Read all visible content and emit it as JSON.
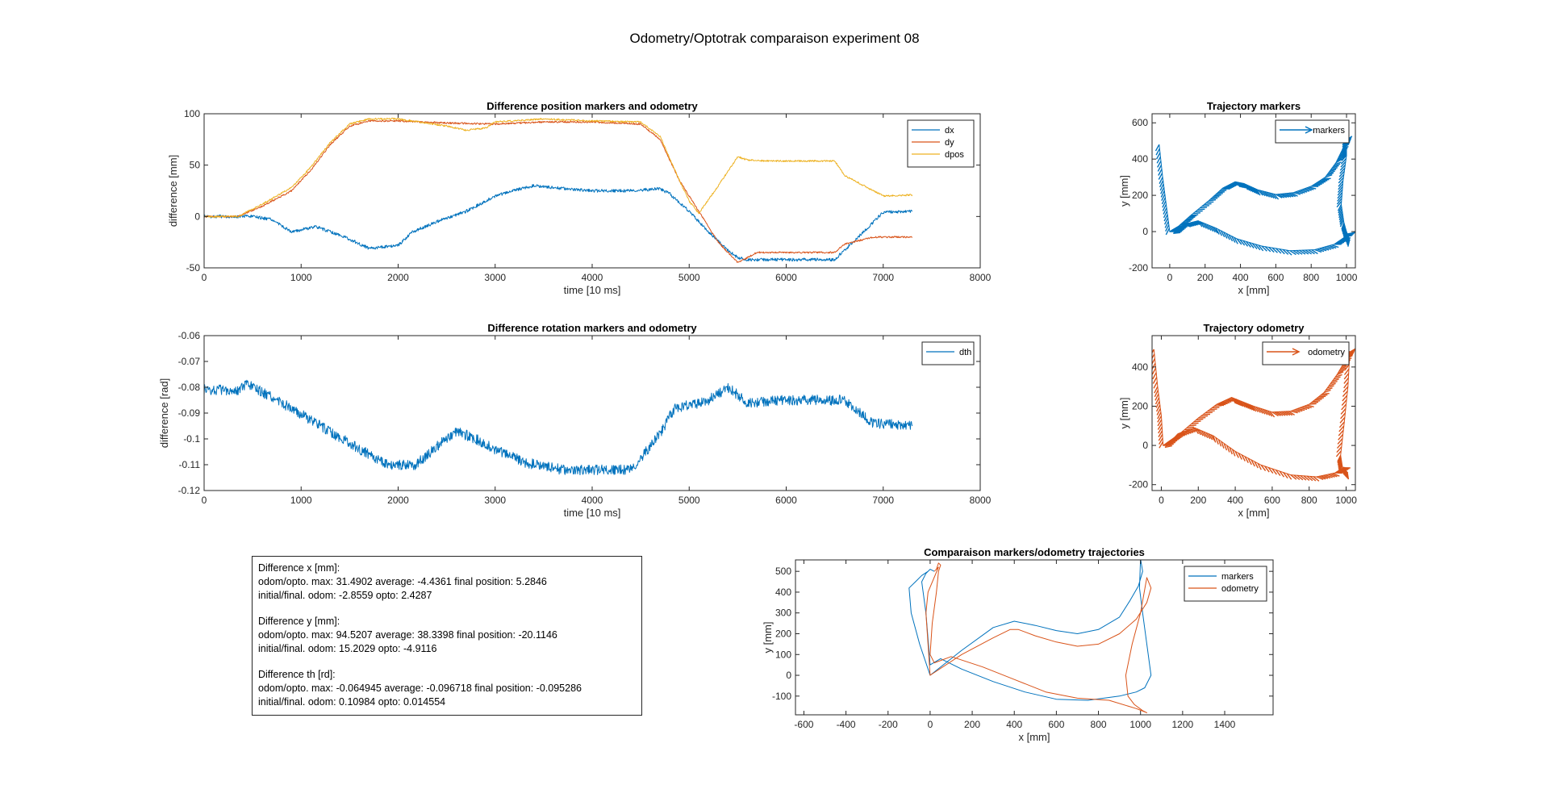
{
  "figure": {
    "title": "Odometry/Optotrak comparaison experiment 08"
  },
  "colors": {
    "blue": "#0072BD",
    "orange": "#D95319",
    "yellow": "#EDB120",
    "axis": "#262626"
  },
  "chart_data": [
    {
      "id": "pos",
      "type": "line",
      "title": "Difference position markers and odometry",
      "xlabel": "time [10 ms]",
      "ylabel": "difference [mm]",
      "xlim": [
        0,
        8000
      ],
      "ylim": [
        -50,
        100
      ],
      "xticks": [
        0,
        1000,
        2000,
        3000,
        4000,
        5000,
        6000,
        7000,
        8000
      ],
      "yticks": [
        -50,
        0,
        50,
        100
      ],
      "legend_position": "top-right",
      "series": [
        {
          "name": "dx",
          "color": "#0072BD",
          "noise": 1.5,
          "x": [
            0,
            350,
            500,
            700,
            900,
            1150,
            1400,
            1700,
            1800,
            2000,
            2150,
            2400,
            2700,
            3000,
            3300,
            3400,
            3600,
            4000,
            4400,
            4700,
            4800,
            5000,
            5200,
            5400,
            5500,
            5600,
            6000,
            6500,
            6600,
            6850,
            7000,
            7300
          ],
          "y": [
            0,
            0,
            0,
            -3,
            -15,
            -10,
            -18,
            -31,
            -30,
            -28,
            -15,
            -5,
            5,
            20,
            28,
            30,
            28,
            25,
            25,
            27,
            22,
            5,
            -15,
            -33,
            -40,
            -42,
            -42,
            -42,
            -33,
            -10,
            4,
            5
          ]
        },
        {
          "name": "dy",
          "color": "#D95319",
          "noise": 0.8,
          "x": [
            0,
            350,
            600,
            900,
            1100,
            1300,
            1500,
            1700,
            2000,
            2500,
            3000,
            3500,
            4000,
            4500,
            4700,
            4900,
            5100,
            5300,
            5500,
            5700,
            6000,
            6500,
            6600,
            6900,
            7000,
            7300
          ],
          "y": [
            0,
            0,
            10,
            25,
            45,
            70,
            88,
            93,
            93,
            91,
            90,
            92,
            92,
            90,
            75,
            35,
            5,
            -25,
            -45,
            -35,
            -35,
            -35,
            -27,
            -20,
            -20,
            -20
          ]
        },
        {
          "name": "dpos",
          "color": "#EDB120",
          "noise": 0.8,
          "x": [
            0,
            350,
            600,
            900,
            1100,
            1300,
            1500,
            1700,
            2000,
            2500,
            2700,
            2900,
            3000,
            3500,
            4000,
            4500,
            4700,
            4900,
            5000,
            5100,
            5300,
            5500,
            5600,
            5800,
            6500,
            6600,
            6900,
            7000,
            7300
          ],
          "y": [
            0,
            0,
            12,
            28,
            48,
            72,
            90,
            95,
            95,
            88,
            84,
            86,
            92,
            95,
            93,
            92,
            78,
            35,
            15,
            3,
            30,
            58,
            55,
            54,
            54,
            40,
            25,
            20,
            21
          ]
        }
      ]
    },
    {
      "id": "rot",
      "type": "line",
      "title": "Difference rotation markers and odometry",
      "xlabel": "time [10 ms]",
      "ylabel": "difference [rad]",
      "xlim": [
        0,
        8000
      ],
      "ylim": [
        -0.12,
        -0.06
      ],
      "xticks": [
        0,
        1000,
        2000,
        3000,
        4000,
        5000,
        6000,
        7000,
        8000
      ],
      "yticks": [
        -0.12,
        -0.11,
        -0.1,
        -0.09,
        -0.08,
        -0.07,
        -0.06
      ],
      "legend_position": "top-right",
      "series": [
        {
          "name": "dth",
          "color": "#0072BD",
          "noise": 0.002,
          "x": [
            0,
            350,
            450,
            800,
            1200,
            1600,
            1900,
            2100,
            2150,
            2400,
            2600,
            2800,
            3000,
            3300,
            3700,
            3800,
            4400,
            4450,
            4700,
            4850,
            5000,
            5200,
            5400,
            5600,
            6000,
            6500,
            6600,
            6700,
            6900,
            7300
          ],
          "y": [
            -0.081,
            -0.081,
            -0.079,
            -0.086,
            -0.095,
            -0.104,
            -0.11,
            -0.11,
            -0.111,
            -0.103,
            -0.097,
            -0.1,
            -0.104,
            -0.109,
            -0.112,
            -0.112,
            -0.112,
            -0.11,
            -0.098,
            -0.088,
            -0.087,
            -0.085,
            -0.08,
            -0.086,
            -0.085,
            -0.085,
            -0.085,
            -0.088,
            -0.094,
            -0.095
          ]
        }
      ]
    },
    {
      "id": "trajm",
      "type": "line",
      "title": "Trajectory markers",
      "xlabel": "x [mm]",
      "ylabel": "y [mm]",
      "xlim": [
        -100,
        1050
      ],
      "ylim": [
        -200,
        650
      ],
      "xticks": [
        0,
        200,
        400,
        600,
        800,
        1000
      ],
      "yticks": [
        -200,
        0,
        200,
        400,
        600
      ],
      "legend_position": "top-right",
      "series": [
        {
          "name": "markers",
          "color": "#0072BD",
          "style": "quiver",
          "x": [
            -60,
            -40,
            -20,
            0,
            15,
            50,
            120,
            220,
            300,
            370,
            420,
            500,
            600,
            700,
            800,
            880,
            940,
            980,
            1000,
            1000,
            980,
            970,
            985,
            1000,
            1020
          ],
          "y": [
            480,
            300,
            150,
            0,
            10,
            30,
            90,
            170,
            240,
            275,
            265,
            230,
            205,
            215,
            250,
            300,
            380,
            460,
            510,
            420,
            280,
            150,
            50,
            0,
            -50
          ]
        },
        {
          "name": "",
          "color": "#0072BD",
          "style": "quiver",
          "x": [
            20,
            80,
            160,
            260,
            380,
            520,
            680,
            820,
            930,
            990,
            1010
          ],
          "y": [
            -10,
            40,
            60,
            20,
            -40,
            -80,
            -105,
            -100,
            -70,
            -30,
            -10
          ]
        }
      ]
    },
    {
      "id": "trajo",
      "type": "line",
      "title": "Trajectory odometry",
      "xlabel": "x [mm]",
      "ylabel": "y [mm]",
      "xlim": [
        -50,
        1050
      ],
      "ylim": [
        -230,
        560
      ],
      "xticks": [
        0,
        200,
        400,
        600,
        800,
        1000
      ],
      "yticks": [
        -200,
        0,
        200,
        400
      ],
      "legend_position": "top-right",
      "series": [
        {
          "name": "odometry",
          "color": "#D95319",
          "style": "quiver",
          "x": [
            -40,
            -20,
            0,
            10,
            40,
            100,
            200,
            300,
            380,
            420,
            500,
            600,
            700,
            800,
            880,
            950,
            1000,
            1020,
            1010,
            990,
            970,
            980,
            1010
          ],
          "y": [
            490,
            300,
            150,
            0,
            20,
            60,
            140,
            210,
            245,
            230,
            200,
            170,
            175,
            210,
            270,
            360,
            440,
            480,
            300,
            120,
            -50,
            -110,
            -140
          ]
        },
        {
          "name": "",
          "color": "#D95319",
          "style": "quiver",
          "x": [
            20,
            90,
            180,
            280,
            400,
            540,
            700,
            840,
            940,
            990
          ],
          "y": [
            -10,
            60,
            90,
            50,
            -30,
            -100,
            -150,
            -160,
            -140,
            -110
          ]
        }
      ]
    },
    {
      "id": "comp",
      "type": "line",
      "title": "Comparaison markers/odometry trajectories",
      "xlabel": "x [mm]",
      "ylabel": "y [mm]",
      "xlim": [
        -640,
        1630
      ],
      "ylim": [
        -190,
        555
      ],
      "xticks": [
        -600,
        -400,
        -200,
        0,
        200,
        400,
        600,
        800,
        1000,
        1200,
        1400
      ],
      "yticks": [
        -100,
        0,
        100,
        200,
        300,
        400,
        500
      ],
      "legend_position": "top-right",
      "series": [
        {
          "name": "markers",
          "color": "#0072BD",
          "style": "line",
          "x": [
            -10,
            -40,
            -70,
            -100,
            -90,
            -50,
            0,
            150,
            300,
            400,
            500,
            600,
            700,
            800,
            900,
            950,
            990,
            1010,
            1000,
            995,
            1010,
            1030,
            1050,
            1020,
            980,
            900,
            750,
            600,
            450,
            300,
            150,
            50,
            0,
            -20,
            -40,
            -20,
            0,
            20
          ],
          "y": [
            500,
            480,
            450,
            420,
            300,
            150,
            0,
            120,
            230,
            260,
            240,
            215,
            200,
            220,
            280,
            360,
            430,
            500,
            560,
            420,
            300,
            150,
            0,
            -60,
            -80,
            -100,
            -120,
            -115,
            -80,
            -30,
            30,
            80,
            50,
            300,
            450,
            490,
            510,
            500
          ]
        },
        {
          "name": "odometry",
          "color": "#D95319",
          "style": "line",
          "x": [
            20,
            40,
            -10,
            -20,
            -10,
            0,
            150,
            300,
            380,
            420,
            500,
            600,
            700,
            800,
            900,
            980,
            1030,
            1050,
            1030,
            1000,
            960,
            930,
            940,
            970,
            1010,
            1030,
            980,
            850,
            700,
            550,
            400,
            250,
            100,
            20,
            0,
            10,
            30,
            40,
            50,
            40,
            30
          ],
          "y": [
            500,
            520,
            400,
            300,
            150,
            0,
            100,
            180,
            220,
            220,
            190,
            160,
            140,
            150,
            200,
            270,
            350,
            420,
            470,
            300,
            150,
            0,
            -100,
            -140,
            -170,
            -180,
            -160,
            -120,
            -110,
            -80,
            -20,
            40,
            90,
            60,
            100,
            250,
            400,
            500,
            530,
            540,
            510
          ]
        }
      ]
    }
  ],
  "stats": [
    {
      "header": "Difference x [mm]:",
      "line1": "odom/opto.  max: 31.4902 average: -4.4361 final position: 5.2846",
      "line2": "initial/final. odom: -2.8559 opto: 2.4287"
    },
    {
      "header": "Difference y [mm]:",
      "line1": "odom/opto.  max: 94.5207 average: 38.3398 final position: -20.1146",
      "line2": "initial/final. odom: 15.2029 opto: -4.9116"
    },
    {
      "header": "Difference th [rd]:",
      "line1": "odom/opto.  max: -0.064945 average: -0.096718 final position: -0.095286",
      "line2": "initial/final. odom: 0.10984 opto: 0.014554"
    }
  ]
}
